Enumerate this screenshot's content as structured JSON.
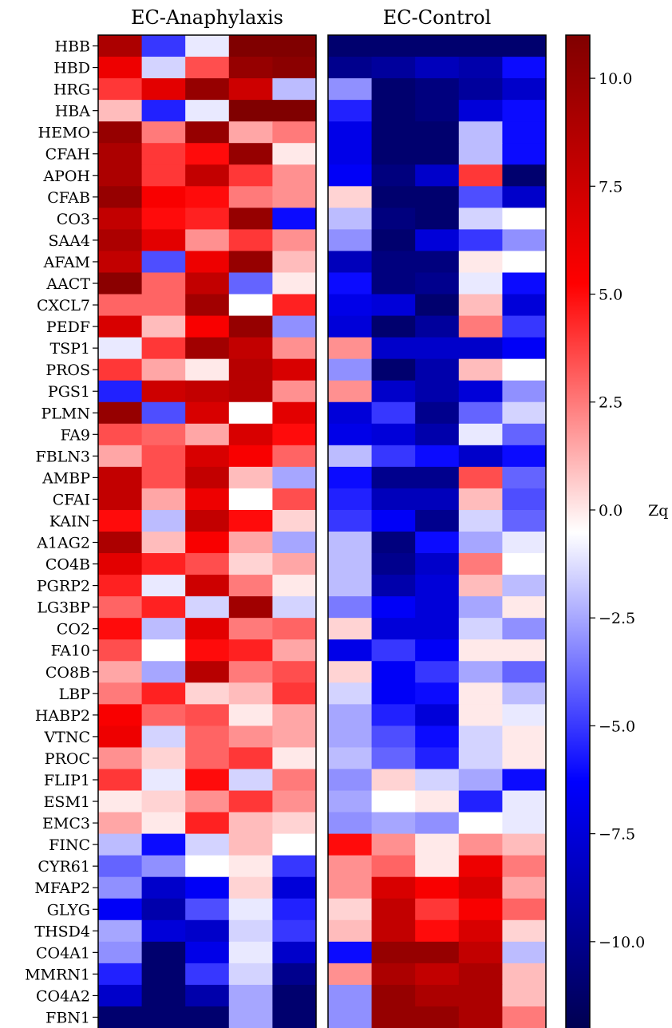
{
  "chart_data": {
    "type": "heatmap",
    "panels": [
      {
        "title": "EC-Anaphylaxis",
        "n_cols": 5
      },
      {
        "title": "EC-Control",
        "n_cols": 5
      }
    ],
    "rows": [
      "HBB",
      "HBD",
      "HRG",
      "HBA",
      "HEMO",
      "CFAH",
      "APOH",
      "CFAB",
      "CO3",
      "SAA4",
      "AFAM",
      "AACT",
      "CXCL7",
      "PEDF",
      "TSP1",
      "PROS",
      "PGS1",
      "PLMN",
      "FA9",
      "FBLN3",
      "AMBP",
      "CFAI",
      "KAIN",
      "A1AG2",
      "CO4B",
      "PGRP2",
      "LG3BP",
      "CO2",
      "FA10",
      "CO8B",
      "LBP",
      "HABP2",
      "VTNC",
      "PROC",
      "FLIP1",
      "ESM1",
      "EMC3",
      "FINC",
      "CYR61",
      "MFAP2",
      "GLYG",
      "THSD4",
      "CO4A1",
      "MMRN1",
      "CO4A2",
      "FBN1"
    ],
    "values": [
      [
        9,
        -5,
        -1,
        11,
        11,
        -11,
        -11,
        -11,
        -11,
        -11
      ],
      [
        6,
        -1.5,
        3.5,
        10,
        10.5,
        -10,
        -9.5,
        -8.5,
        -9,
        -6
      ],
      [
        4,
        6.5,
        10,
        7.5,
        -2,
        -3,
        -11,
        -10.5,
        -9.5,
        -8
      ],
      [
        1,
        -5.5,
        -1,
        11,
        11,
        -5.5,
        -11,
        -10.5,
        -7.5,
        -6
      ],
      [
        10,
        2.5,
        10,
        1.5,
        2.5,
        -7,
        -11,
        -11,
        -2,
        -6
      ],
      [
        9,
        4,
        5,
        10,
        0,
        -7,
        -11,
        -11,
        -2,
        -6
      ],
      [
        9,
        4,
        8,
        4,
        2,
        -6.5,
        -10.5,
        -8,
        4,
        -11
      ],
      [
        10,
        5.5,
        5,
        2.5,
        2,
        0.5,
        -11,
        -11,
        -4.5,
        -8
      ],
      [
        8,
        5,
        4.5,
        10,
        -6,
        -2,
        -10.5,
        -11,
        -1.5,
        -0.5
      ],
      [
        9,
        6.5,
        2,
        4,
        2,
        -3,
        -11,
        -7.5,
        -5,
        -3
      ],
      [
        8,
        -4.5,
        6,
        10,
        1,
        -8.5,
        -10.5,
        -10.5,
        0,
        -0.5
      ],
      [
        10.5,
        3,
        8,
        -4,
        0,
        -6,
        -10.5,
        -10,
        -1,
        -6
      ],
      [
        3,
        3,
        9.5,
        -0.5,
        4.5,
        -7,
        -7.5,
        -11,
        1,
        -7.5
      ],
      [
        7,
        1,
        5.5,
        10,
        -3,
        -7.5,
        -11,
        -9.5,
        2.5,
        -5
      ],
      [
        -1,
        4,
        9.5,
        8,
        2,
        2,
        -8,
        -8,
        -8,
        -6.5
      ],
      [
        4,
        1.5,
        0,
        8.5,
        7,
        -3,
        -11,
        -9,
        1,
        -0.5
      ],
      [
        -5.5,
        7.5,
        8,
        8.5,
        2,
        2,
        -8,
        -9,
        -7.5,
        -3
      ],
      [
        10,
        -4.5,
        7,
        -0.5,
        6.5,
        -7.5,
        -5,
        -10,
        -4,
        -1.5
      ],
      [
        3.5,
        3,
        1.5,
        7,
        5,
        -7,
        -7.5,
        -9,
        -1,
        -4
      ],
      [
        1.5,
        3.5,
        7,
        5.5,
        3,
        -2,
        -5,
        -6,
        -8,
        -6
      ],
      [
        8,
        3.5,
        8,
        1,
        -2.5,
        -6,
        -10,
        -10,
        3.5,
        -4
      ],
      [
        8,
        1.5,
        6,
        -0.5,
        3.5,
        -5.5,
        -8.5,
        -8.5,
        1,
        -4.5
      ],
      [
        5,
        -2,
        8,
        5,
        0.5,
        -5,
        -6.5,
        -10,
        -1.5,
        -4
      ],
      [
        9,
        1,
        5.5,
        1.5,
        -2.5,
        -2,
        -10.5,
        -6,
        -2.5,
        -1
      ],
      [
        6.5,
        4.5,
        3.5,
        0.5,
        1.5,
        -2,
        -10,
        -8,
        2.5,
        -0.5
      ],
      [
        4.5,
        -1,
        7.5,
        2.5,
        0,
        -2,
        -9,
        -7.5,
        1,
        -2
      ],
      [
        3,
        4.5,
        -1.5,
        9.5,
        -1.5,
        -3.5,
        -6.5,
        -7.5,
        -2.5,
        0
      ],
      [
        5,
        -2,
        6.5,
        2.5,
        3,
        0.5,
        -7.5,
        -7.5,
        -1.5,
        -3
      ],
      [
        3.5,
        -0.5,
        5,
        4.5,
        1.5,
        -7,
        -5,
        -6.5,
        0,
        0
      ],
      [
        1.5,
        -2.5,
        8.5,
        2.5,
        3.5,
        0.5,
        -6.5,
        -5,
        -2.5,
        -4
      ],
      [
        2.5,
        4.5,
        0.5,
        1,
        4,
        -1.5,
        -6.5,
        -6,
        0,
        -2
      ],
      [
        5.5,
        3,
        3.5,
        0,
        1.5,
        -2.5,
        -5.5,
        -7.5,
        0,
        -1
      ],
      [
        6,
        -1.5,
        3,
        2,
        1.5,
        -2.5,
        -4.5,
        -6,
        -1.5,
        0
      ],
      [
        2,
        0.5,
        3,
        4,
        0,
        -2,
        -4,
        -5.5,
        -1.5,
        0
      ],
      [
        4,
        -1,
        5,
        -1.5,
        2.5,
        -3,
        0.5,
        -1.5,
        -2.5,
        -6
      ],
      [
        0,
        0.5,
        2,
        4,
        2,
        -2.5,
        -0.5,
        0,
        -5.5,
        -1
      ],
      [
        1.5,
        0,
        4.5,
        1,
        0.5,
        -3,
        -2.5,
        -3,
        -0.5,
        -1
      ],
      [
        -2,
        -6,
        -1.5,
        1,
        -0.5,
        5,
        2,
        0,
        2,
        1
      ],
      [
        -4,
        -3,
        -0.5,
        0,
        -5,
        2,
        3,
        0,
        6,
        2.5
      ],
      [
        -3,
        -8,
        -6.5,
        0.5,
        -7.5,
        2,
        7,
        5.5,
        7,
        1.5
      ],
      [
        -6.5,
        -9,
        -4.5,
        -1,
        -5.5,
        0.5,
        8,
        4,
        5.5,
        3
      ],
      [
        -2.5,
        -7.5,
        -8,
        -1.5,
        -5,
        1,
        8,
        5,
        7,
        0.5
      ],
      [
        -3,
        -11,
        -7,
        -1,
        -8,
        -6,
        10,
        10,
        8,
        -2
      ],
      [
        -5.5,
        -11,
        -5,
        -1.5,
        -10,
        2,
        9,
        8,
        9,
        1
      ],
      [
        -8,
        -11,
        -9,
        -2.5,
        -11,
        -3,
        10,
        9,
        9,
        1
      ],
      [
        -11,
        -11,
        -11,
        -2.5,
        -11,
        -3,
        10,
        10,
        9,
        2.5
      ]
    ],
    "colormap": {
      "low": "#000050",
      "mid": "#ffffff",
      "high": "#800000",
      "neg": "#0000ff",
      "pos": "#ff0000"
    },
    "colorbar": {
      "label": "Zq",
      "vmin": -12,
      "vmax": 11,
      "ticks": [
        10,
        7.5,
        5,
        2.5,
        0,
        -2.5,
        -5,
        -7.5,
        -10
      ],
      "tick_labels": [
        "10.0",
        "7.5",
        "5.0",
        "2.5",
        "0.0",
        "−2.5",
        "−5.0",
        "−7.5",
        "−10.0"
      ]
    }
  }
}
